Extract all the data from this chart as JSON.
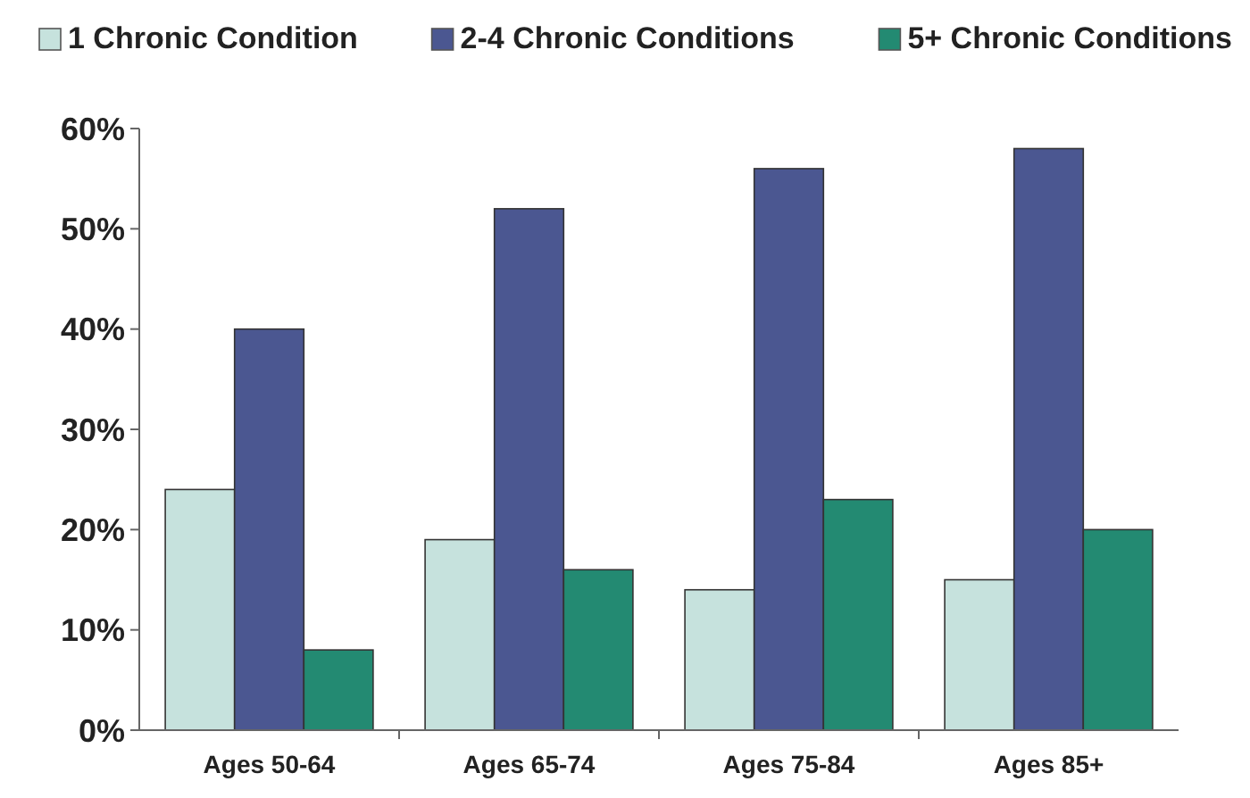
{
  "chart_data": {
    "type": "bar",
    "categories": [
      "Ages 50-64",
      "Ages 65-74",
      "Ages 75-84",
      "Ages 85+"
    ],
    "series": [
      {
        "name": "1 Chronic Condition",
        "color": "#c6e2dd",
        "values": [
          24,
          19,
          14,
          15
        ]
      },
      {
        "name": "2-4 Chronic Conditions",
        "color": "#4b5791",
        "values": [
          40,
          52,
          56,
          58
        ]
      },
      {
        "name": "5+ Chronic Conditions",
        "color": "#238a72",
        "values": [
          8,
          16,
          23,
          20
        ]
      }
    ],
    "ylim": [
      0,
      60
    ],
    "yticks": [
      {
        "value": 0,
        "label": "0%"
      },
      {
        "value": 10,
        "label": "10%"
      },
      {
        "value": 20,
        "label": "20%"
      },
      {
        "value": 30,
        "label": "30%"
      },
      {
        "value": 40,
        "label": "40%"
      },
      {
        "value": 50,
        "label": "50%"
      },
      {
        "value": 60,
        "label": "60%"
      }
    ],
    "legend": "top",
    "grid": false
  }
}
